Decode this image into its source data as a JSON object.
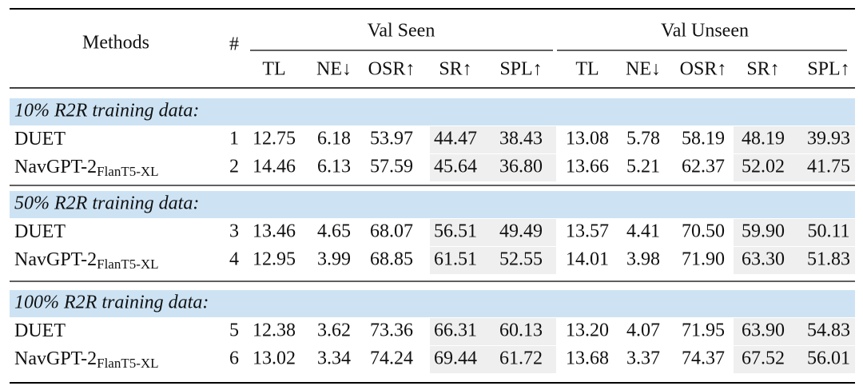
{
  "header": {
    "methods": "Methods",
    "hash": "#",
    "groups": [
      "Val Seen",
      "Val Unseen"
    ],
    "columns": [
      "TL",
      "NE↓",
      "OSR↑",
      "SR↑",
      "SPL↑",
      "TL",
      "NE↓",
      "OSR↑",
      "SR↑",
      "SPL↑"
    ]
  },
  "sections": [
    {
      "title": "10% R2R training data:",
      "rows": [
        {
          "method": "DUET",
          "id": "1",
          "values": [
            "12.75",
            "6.18",
            "53.97",
            "44.47",
            "38.43",
            "13.08",
            "5.78",
            "58.19",
            "48.19",
            "39.93"
          ]
        },
        {
          "method": "NavGPT-2",
          "subscript": "FlanT5-XL",
          "id": "2",
          "values": [
            "14.46",
            "6.13",
            "57.59",
            "45.64",
            "36.80",
            "13.66",
            "5.21",
            "62.37",
            "52.02",
            "41.75"
          ]
        }
      ]
    },
    {
      "title": "50% R2R training data:",
      "rows": [
        {
          "method": "DUET",
          "id": "3",
          "values": [
            "13.46",
            "4.65",
            "68.07",
            "56.51",
            "49.49",
            "13.57",
            "4.41",
            "70.50",
            "59.90",
            "50.11"
          ]
        },
        {
          "method": "NavGPT-2",
          "subscript": "FlanT5-XL",
          "id": "4",
          "values": [
            "12.95",
            "3.99",
            "68.85",
            "61.51",
            "52.55",
            "14.01",
            "3.98",
            "71.90",
            "63.30",
            "51.83"
          ]
        }
      ]
    },
    {
      "title": "100% R2R training data:",
      "rows": [
        {
          "method": "DUET",
          "id": "5",
          "values": [
            "12.38",
            "3.62",
            "73.36",
            "66.31",
            "60.13",
            "13.20",
            "4.07",
            "71.95",
            "63.90",
            "54.83"
          ]
        },
        {
          "method": "NavGPT-2",
          "subscript": "FlanT5-XL",
          "id": "6",
          "values": [
            "13.02",
            "3.34",
            "74.24",
            "69.44",
            "61.72",
            "13.68",
            "3.37",
            "74.37",
            "67.52",
            "56.01"
          ]
        }
      ]
    }
  ]
}
